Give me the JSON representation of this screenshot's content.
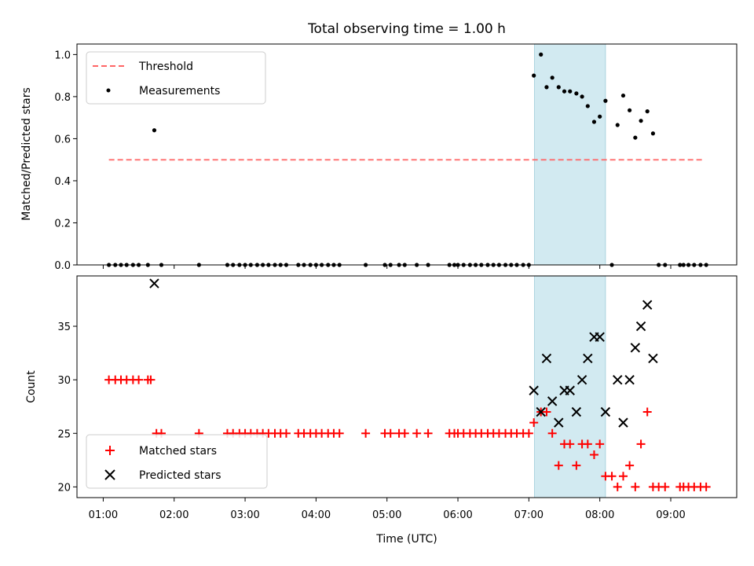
{
  "chart_data": [
    {
      "type": "scatter",
      "title": "Total observing time = 1.00 h",
      "xlabel": "",
      "ylabel": "Matched/Predicted stars",
      "x_unit": "hours (UTC)",
      "xlim": [
        0.63,
        9.93
      ],
      "ylim": [
        0.0,
        1.05
      ],
      "yticks": [
        0.0,
        0.2,
        0.4,
        0.6,
        0.8,
        1.0
      ],
      "ytick_labels": [
        "0.0",
        "0.2",
        "0.4",
        "0.6",
        "0.8",
        "1.0"
      ],
      "shaded_region": {
        "x": [
          7.08,
          8.08
        ],
        "color": "#add8e6"
      },
      "legend": {
        "position": "upper-left"
      },
      "series": [
        {
          "name": "Threshold",
          "kind": "dashed-line",
          "color": "#ff6666",
          "x": [
            1.08,
            9.48
          ],
          "y": [
            0.5,
            0.5
          ]
        },
        {
          "name": "Measurements",
          "kind": "points",
          "color": "#000000",
          "x": [
            1.08,
            1.17,
            1.25,
            1.33,
            1.42,
            1.5,
            1.63,
            1.72,
            1.82,
            2.35,
            2.75,
            2.83,
            2.92,
            3.0,
            3.08,
            3.17,
            3.25,
            3.33,
            3.42,
            3.5,
            3.58,
            3.75,
            3.83,
            3.92,
            4.0,
            4.08,
            4.17,
            4.25,
            4.33,
            4.7,
            4.97,
            5.05,
            5.17,
            5.25,
            5.42,
            5.58,
            5.88,
            5.95,
            6.0,
            6.08,
            6.17,
            6.25,
            6.33,
            6.42,
            6.5,
            6.58,
            6.67,
            6.75,
            6.83,
            6.92,
            7.0,
            7.07,
            7.17,
            7.25,
            7.33,
            7.42,
            7.5,
            7.58,
            7.67,
            7.75,
            7.83,
            7.92,
            8.0,
            8.08,
            8.17,
            8.25,
            8.33,
            8.42,
            8.5,
            8.58,
            8.67,
            8.75,
            8.83,
            8.92,
            9.13,
            9.18,
            9.25,
            9.33,
            9.42,
            9.5
          ],
          "y": [
            0,
            0,
            0,
            0,
            0,
            0,
            0,
            0.64,
            0,
            0,
            0,
            0,
            0,
            0,
            0,
            0,
            0,
            0,
            0,
            0,
            0,
            0,
            0,
            0,
            0,
            0,
            0,
            0,
            0,
            0,
            0,
            0,
            0,
            0,
            0,
            0,
            0,
            0,
            0,
            0,
            0,
            0,
            0,
            0,
            0,
            0,
            0,
            0,
            0,
            0,
            0,
            0.9,
            1.0,
            0.845,
            0.89,
            0.845,
            0.825,
            0.825,
            0.815,
            0.8,
            0.755,
            0.68,
            0.705,
            0.78,
            0,
            0.665,
            0.805,
            0.735,
            0.605,
            0.685,
            0.73,
            0.625,
            0,
            0,
            0,
            0,
            0,
            0,
            0,
            0
          ]
        }
      ]
    },
    {
      "type": "scatter",
      "title": "",
      "xlabel": "Time (UTC)",
      "ylabel": "Count",
      "x_unit": "hours (UTC)",
      "xlim": [
        0.63,
        9.93
      ],
      "ylim": [
        19.0,
        39.7
      ],
      "xticks": [
        1,
        2,
        3,
        4,
        5,
        6,
        7,
        8,
        9
      ],
      "xtick_labels": [
        "01:00",
        "02:00",
        "03:00",
        "04:00",
        "05:00",
        "06:00",
        "07:00",
        "08:00",
        "09:00"
      ],
      "yticks": [
        20,
        25,
        30,
        35
      ],
      "ytick_labels": [
        "20",
        "25",
        "30",
        "35"
      ],
      "shaded_region": {
        "x": [
          7.08,
          8.08
        ],
        "color": "#add8e6"
      },
      "legend": {
        "position": "lower-left"
      },
      "series": [
        {
          "name": "Matched stars",
          "kind": "plus",
          "color": "#ff0000",
          "x": [
            1.08,
            1.17,
            1.25,
            1.33,
            1.42,
            1.5,
            1.63,
            1.67,
            1.75,
            1.82,
            2.35,
            2.75,
            2.83,
            2.92,
            3.0,
            3.08,
            3.17,
            3.25,
            3.33,
            3.42,
            3.5,
            3.58,
            3.75,
            3.83,
            3.92,
            4.0,
            4.08,
            4.17,
            4.25,
            4.33,
            4.7,
            4.97,
            5.05,
            5.17,
            5.25,
            5.42,
            5.58,
            5.88,
            5.95,
            6.0,
            6.08,
            6.17,
            6.25,
            6.33,
            6.42,
            6.5,
            6.58,
            6.67,
            6.75,
            6.83,
            6.92,
            7.0,
            7.07,
            7.17,
            7.25,
            7.33,
            7.42,
            7.5,
            7.58,
            7.67,
            7.75,
            7.83,
            7.92,
            8.0,
            8.08,
            8.17,
            8.25,
            8.33,
            8.42,
            8.5,
            8.58,
            8.67,
            8.75,
            8.83,
            8.92,
            9.13,
            9.18,
            9.25,
            9.33,
            9.42,
            9.5
          ],
          "y": [
            30,
            30,
            30,
            30,
            30,
            30,
            30,
            30,
            25,
            25,
            25,
            25,
            25,
            25,
            25,
            25,
            25,
            25,
            25,
            25,
            25,
            25,
            25,
            25,
            25,
            25,
            25,
            25,
            25,
            25,
            25,
            25,
            25,
            25,
            25,
            25,
            25,
            25,
            25,
            25,
            25,
            25,
            25,
            25,
            25,
            25,
            25,
            25,
            25,
            25,
            25,
            25,
            26,
            27,
            27,
            25,
            22,
            24,
            24,
            22,
            24,
            24,
            23,
            24,
            21,
            21,
            20,
            21,
            22,
            20,
            24,
            27,
            20,
            20,
            20,
            20,
            20,
            20,
            20,
            20,
            20
          ]
        },
        {
          "name": "Predicted stars",
          "kind": "x",
          "color": "#000000",
          "x": [
            1.72,
            7.07,
            7.17,
            7.25,
            7.33,
            7.42,
            7.5,
            7.58,
            7.67,
            7.75,
            7.83,
            7.92,
            8.0,
            8.08,
            8.25,
            8.33,
            8.42,
            8.5,
            8.58,
            8.67,
            8.75
          ],
          "y": [
            39,
            29,
            27,
            32,
            28,
            26,
            29,
            29,
            27,
            30,
            32,
            34,
            34,
            27,
            30,
            26,
            30,
            33,
            35,
            37,
            32
          ]
        }
      ]
    }
  ]
}
